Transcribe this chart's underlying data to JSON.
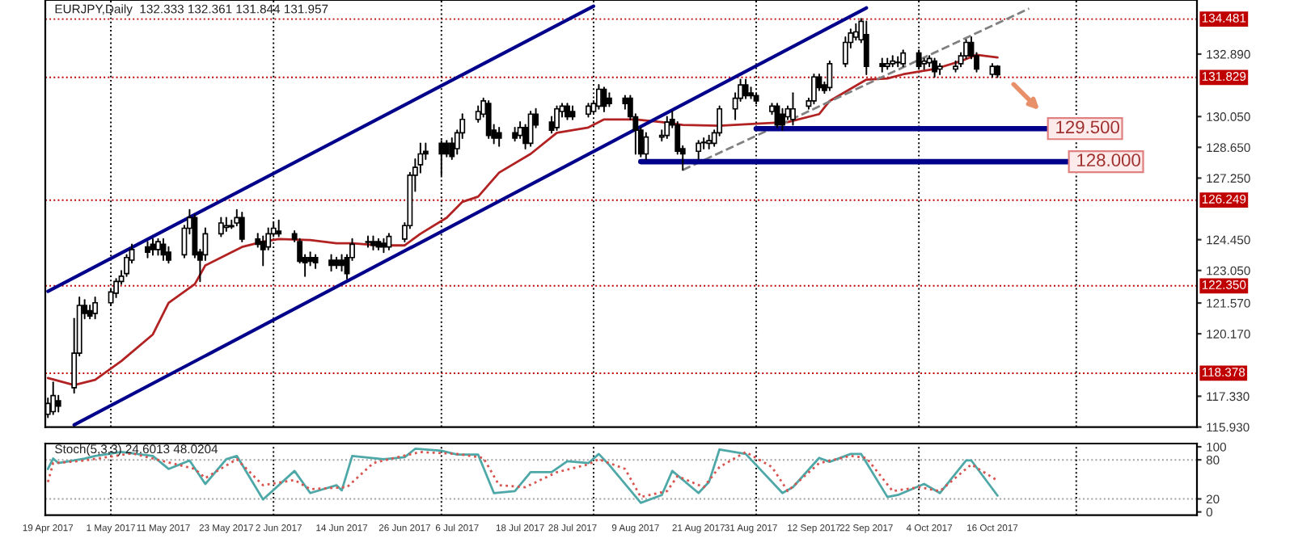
{
  "chart_data": [
    {
      "type": "candlestick",
      "title": "EURJPY,Daily  132.333 132.361 131.844 131.957",
      "tick_labels": "y",
      "grid": false,
      "xlim": [
        "2017-04-18T12:00",
        "2017-11-24"
      ],
      "ylim": [
        115.93,
        135.35
      ],
      "yticks": [
        {
          "value": 132.89,
          "label": "132.890"
        },
        {
          "value": 130.05,
          "label": "130.050"
        },
        {
          "value": 128.65,
          "label": "128.650"
        },
        {
          "value": 127.25,
          "label": "127.250"
        },
        {
          "value": 124.45,
          "label": "124.450"
        },
        {
          "value": 123.05,
          "label": "123.050"
        },
        {
          "value": 121.57,
          "label": "121.570"
        },
        {
          "value": 120.17,
          "label": "120.170"
        },
        {
          "value": 117.33,
          "label": "117.330"
        },
        {
          "value": 115.93,
          "label": "115.930"
        }
      ],
      "x": [
        "2017-04-19",
        "2017-04-20",
        "2017-04-21",
        "2017-04-24",
        "2017-04-25",
        "2017-04-26",
        "2017-04-27",
        "2017-04-28",
        "2017-05-01",
        "2017-05-02",
        "2017-05-03",
        "2017-05-04",
        "2017-05-05",
        "2017-05-08",
        "2017-05-09",
        "2017-05-10",
        "2017-05-11",
        "2017-05-12",
        "2017-05-15",
        "2017-05-16",
        "2017-05-17",
        "2017-05-18",
        "2017-05-19",
        "2017-05-22",
        "2017-05-23",
        "2017-05-24",
        "2017-05-25",
        "2017-05-26",
        "2017-05-29",
        "2017-05-30",
        "2017-05-31",
        "2017-06-01",
        "2017-06-02",
        "2017-06-05",
        "2017-06-06",
        "2017-06-07",
        "2017-06-08",
        "2017-06-09",
        "2017-06-12",
        "2017-06-13",
        "2017-06-14",
        "2017-06-15",
        "2017-06-16",
        "2017-06-19",
        "2017-06-20",
        "2017-06-21",
        "2017-06-22",
        "2017-06-23",
        "2017-06-26",
        "2017-06-27",
        "2017-06-28",
        "2017-06-29",
        "2017-06-30",
        "2017-07-03",
        "2017-07-04",
        "2017-07-05",
        "2017-07-06",
        "2017-07-07",
        "2017-07-10",
        "2017-07-11",
        "2017-07-12",
        "2017-07-13",
        "2017-07-14",
        "2017-07-17",
        "2017-07-18",
        "2017-07-19",
        "2017-07-20",
        "2017-07-21",
        "2017-07-24",
        "2017-07-25",
        "2017-07-26",
        "2017-07-27",
        "2017-07-28",
        "2017-07-31",
        "2017-08-01",
        "2017-08-02",
        "2017-08-03",
        "2017-08-04",
        "2017-08-07",
        "2017-08-08",
        "2017-08-09",
        "2017-08-10",
        "2017-08-11",
        "2017-08-14",
        "2017-08-15",
        "2017-08-16",
        "2017-08-17",
        "2017-08-18",
        "2017-08-21",
        "2017-08-22",
        "2017-08-23",
        "2017-08-24",
        "2017-08-25",
        "2017-08-28",
        "2017-08-29",
        "2017-08-30",
        "2017-08-31",
        "2017-09-01",
        "2017-09-04",
        "2017-09-05",
        "2017-09-06",
        "2017-09-07",
        "2017-09-08",
        "2017-09-11",
        "2017-09-12",
        "2017-09-13",
        "2017-09-14",
        "2017-09-15",
        "2017-09-18",
        "2017-09-19",
        "2017-09-20",
        "2017-09-21",
        "2017-09-22",
        "2017-09-25",
        "2017-09-26",
        "2017-09-27",
        "2017-09-28",
        "2017-09-29",
        "2017-10-02",
        "2017-10-03",
        "2017-10-04",
        "2017-10-05",
        "2017-10-06",
        "2017-10-09",
        "2017-10-10",
        "2017-10-11",
        "2017-10-12",
        "2017-10-13",
        "2017-10-16",
        "2017-10-17"
      ],
      "ohlc": [
        [
          116.51,
          117.24,
          116.37,
          117.0
        ],
        [
          116.63,
          117.96,
          116.51,
          117.36
        ],
        [
          117.12,
          117.36,
          116.63,
          116.88
        ],
        [
          117.72,
          120.86,
          117.48,
          119.29
        ],
        [
          119.29,
          121.83,
          119.17,
          121.46
        ],
        [
          121.46,
          121.71,
          120.86,
          121.1
        ],
        [
          121.22,
          121.46,
          120.86,
          120.98
        ],
        [
          121.1,
          121.83,
          120.86,
          121.58
        ],
        [
          121.58,
          122.19,
          121.46,
          122.07
        ],
        [
          122.02,
          122.67,
          121.83,
          122.55
        ],
        [
          122.55,
          123.03,
          122.43,
          122.79
        ],
        [
          122.91,
          123.76,
          122.79,
          123.64
        ],
        [
          123.52,
          124.24,
          123.4,
          124.0
        ],
        [
          124.12,
          124.36,
          123.64,
          123.88
        ],
        [
          124.24,
          124.48,
          123.76,
          124.0
        ],
        [
          124.0,
          124.48,
          123.76,
          124.36
        ],
        [
          124.24,
          124.48,
          123.52,
          123.76
        ],
        [
          123.88,
          124.12,
          123.4,
          123.52
        ],
        [
          123.76,
          125.09,
          123.64,
          124.97
        ],
        [
          124.97,
          125.81,
          124.72,
          125.45
        ],
        [
          125.45,
          125.57,
          123.64,
          123.76
        ],
        [
          123.88,
          124.0,
          122.55,
          123.52
        ],
        [
          123.76,
          124.97,
          123.52,
          124.72
        ],
        [
          124.72,
          125.45,
          124.6,
          125.21
        ],
        [
          125.01,
          125.45,
          124.84,
          125.09
        ],
        [
          125.09,
          125.33,
          124.97,
          125.04
        ],
        [
          125.21,
          125.81,
          125.09,
          125.45
        ],
        [
          125.45,
          125.69,
          124.36,
          124.48
        ],
        [
          124.48,
          124.72,
          124.12,
          124.24
        ],
        [
          124.36,
          124.6,
          123.28,
          124.0
        ],
        [
          124.12,
          124.97,
          124.0,
          124.72
        ],
        [
          124.72,
          125.21,
          124.6,
          124.97
        ],
        [
          124.84,
          125.33,
          124.6,
          124.72
        ],
        [
          124.72,
          124.84,
          124.36,
          124.48
        ],
        [
          124.36,
          124.48,
          123.4,
          123.47
        ],
        [
          123.64,
          123.76,
          122.79,
          123.4
        ],
        [
          123.64,
          123.88,
          123.28,
          123.47
        ],
        [
          123.64,
          123.76,
          123.15,
          123.4
        ],
        [
          123.52,
          123.76,
          123.03,
          123.28
        ],
        [
          123.52,
          123.64,
          123.15,
          123.28
        ],
        [
          123.52,
          123.76,
          123.03,
          123.28
        ],
        [
          123.64,
          123.76,
          122.67,
          122.91
        ],
        [
          123.64,
          124.48,
          123.52,
          124.24
        ],
        [
          124.33,
          124.6,
          124.12,
          124.36
        ],
        [
          124.36,
          124.6,
          124.0,
          124.19
        ],
        [
          124.36,
          124.48,
          124.0,
          124.12
        ],
        [
          124.29,
          124.48,
          123.88,
          124.12
        ],
        [
          124.12,
          124.72,
          124.0,
          124.6
        ],
        [
          124.48,
          125.21,
          124.36,
          125.09
        ],
        [
          125.09,
          127.5,
          124.97,
          127.38
        ],
        [
          127.38,
          128.11,
          126.66,
          127.74
        ],
        [
          127.86,
          128.83,
          127.5,
          128.35
        ],
        [
          128.47,
          128.83,
          128.11,
          128.35
        ],
        [
          128.83,
          128.95,
          127.38,
          128.35
        ],
        [
          128.83,
          128.95,
          128.23,
          128.35
        ],
        [
          128.83,
          129.07,
          128.11,
          128.23
        ],
        [
          128.59,
          129.43,
          128.35,
          129.31
        ],
        [
          129.31,
          130.16,
          129.07,
          129.92
        ],
        [
          129.92,
          130.52,
          129.8,
          130.28
        ],
        [
          130.16,
          130.88,
          130.04,
          130.76
        ],
        [
          130.64,
          130.76,
          129.07,
          129.19
        ],
        [
          129.43,
          129.67,
          128.83,
          129.07
        ],
        [
          129.31,
          129.55,
          128.71,
          129.07
        ],
        [
          129.31,
          129.55,
          128.95,
          129.07
        ],
        [
          129.19,
          129.8,
          129.07,
          129.55
        ],
        [
          129.55,
          129.67,
          128.59,
          128.83
        ],
        [
          128.83,
          130.28,
          128.71,
          130.16
        ],
        [
          130.16,
          130.4,
          129.55,
          129.67
        ],
        [
          129.8,
          130.04,
          129.31,
          129.43
        ],
        [
          129.55,
          130.52,
          129.43,
          130.4
        ],
        [
          130.28,
          130.64,
          130.04,
          130.52
        ],
        [
          130.52,
          130.64,
          129.92,
          130.04
        ],
        [
          130.28,
          130.52,
          129.92,
          130.04
        ],
        [
          130.16,
          130.64,
          130.04,
          130.52
        ],
        [
          130.28,
          130.76,
          130.16,
          130.64
        ],
        [
          130.52,
          131.49,
          130.4,
          131.29
        ],
        [
          131.29,
          131.37,
          130.28,
          130.52
        ],
        [
          130.88,
          131.12,
          130.52,
          130.64
        ],
        [
          130.88,
          131.0,
          130.4,
          130.64
        ],
        [
          130.88,
          131.0,
          129.92,
          130.04
        ],
        [
          130.04,
          130.16,
          128.35,
          129.43
        ],
        [
          129.43,
          129.55,
          128.23,
          128.35
        ],
        [
          128.35,
          129.31,
          128.11,
          129.12
        ],
        [
          129.12,
          129.43,
          128.95,
          129.19
        ],
        [
          129.19,
          130.04,
          129.07,
          129.8
        ],
        [
          129.92,
          130.28,
          129.55,
          129.67
        ],
        [
          129.67,
          129.8,
          128.35,
          128.47
        ],
        [
          128.59,
          128.71,
          127.62,
          128.35
        ],
        [
          128.47,
          128.95,
          128.11,
          128.83
        ],
        [
          128.88,
          129.07,
          128.59,
          128.86
        ],
        [
          128.83,
          129.19,
          128.59,
          128.95
        ],
        [
          128.83,
          129.43,
          128.71,
          129.31
        ],
        [
          129.31,
          130.52,
          129.19,
          130.4
        ],
        [
          130.4,
          131.12,
          129.92,
          130.88
        ],
        [
          130.88,
          131.73,
          130.76,
          131.49
        ],
        [
          131.49,
          131.73,
          130.88,
          131.0
        ],
        [
          131.12,
          131.37,
          130.88,
          131.0
        ],
        [
          131.0,
          131.12,
          130.64,
          130.76
        ],
        [
          130.28,
          130.64,
          130.16,
          130.52
        ],
        [
          130.52,
          130.64,
          129.55,
          129.67
        ],
        [
          130.16,
          130.4,
          129.43,
          129.67
        ],
        [
          130.04,
          130.52,
          129.92,
          130.4
        ],
        [
          129.92,
          131.12,
          129.67,
          130.4
        ],
        [
          130.52,
          130.88,
          130.4,
          130.76
        ],
        [
          130.76,
          131.97,
          130.64,
          131.85
        ],
        [
          131.85,
          131.97,
          131.24,
          131.37
        ],
        [
          131.49,
          131.61,
          131.12,
          131.24
        ],
        [
          131.37,
          132.57,
          131.24,
          132.45
        ],
        [
          132.45,
          133.66,
          132.33,
          133.42
        ],
        [
          133.42,
          134.02,
          133.18,
          133.85
        ],
        [
          133.66,
          134.26,
          133.54,
          133.9
        ],
        [
          133.54,
          134.5,
          133.42,
          134.38
        ],
        [
          133.78,
          134.38,
          131.97,
          132.33
        ],
        [
          132.45,
          132.69,
          132.09,
          132.33
        ],
        [
          132.33,
          132.69,
          132.21,
          132.45
        ],
        [
          132.45,
          132.81,
          132.33,
          132.57
        ],
        [
          132.52,
          132.76,
          132.33,
          132.5
        ],
        [
          132.45,
          133.06,
          132.33,
          132.94
        ],
        [
          132.94,
          133.06,
          132.21,
          132.33
        ],
        [
          132.45,
          132.69,
          132.21,
          132.57
        ],
        [
          132.5,
          132.81,
          132.33,
          132.69
        ],
        [
          132.57,
          132.69,
          131.85,
          132.09
        ],
        [
          132.21,
          132.45,
          131.97,
          132.33
        ],
        [
          132.21,
          132.57,
          132.09,
          132.33
        ],
        [
          132.45,
          132.94,
          132.33,
          132.81
        ],
        [
          132.81,
          133.54,
          132.69,
          133.42
        ],
        [
          133.42,
          133.66,
          132.69,
          132.81
        ],
        [
          132.81,
          132.94,
          132.09,
          132.21
        ],
        [
          131.97,
          132.45,
          131.85,
          132.33
        ],
        [
          132.333,
          132.361,
          131.844,
          131.957
        ]
      ],
      "series": [
        {
          "type": "line",
          "color": "#b22222",
          "x": [
            "2017-04-19",
            "2017-04-24",
            "2017-04-28",
            "2017-05-03",
            "2017-05-09",
            "2017-05-12",
            "2017-05-17",
            "2017-05-19",
            "2017-05-23",
            "2017-05-26",
            "2017-05-30",
            "2017-06-02",
            "2017-06-08",
            "2017-06-13",
            "2017-06-16",
            "2017-06-21",
            "2017-06-26",
            "2017-06-29",
            "2017-07-04",
            "2017-07-07",
            "2017-07-10",
            "2017-07-14",
            "2017-07-20",
            "2017-07-25",
            "2017-07-31",
            "2017-08-03",
            "2017-08-09",
            "2017-08-14",
            "2017-08-18",
            "2017-08-25",
            "2017-09-01",
            "2017-09-07",
            "2017-09-13",
            "2017-09-15",
            "2017-09-22",
            "2017-09-26",
            "2017-09-29",
            "2017-10-05",
            "2017-10-10",
            "2017-10-13",
            "2017-10-17"
          ],
          "values": [
            118.16,
            117.84,
            118.08,
            118.93,
            120.14,
            121.58,
            122.43,
            123.28,
            123.76,
            124.12,
            124.36,
            124.48,
            124.43,
            124.29,
            124.29,
            124.19,
            124.19,
            124.72,
            125.45,
            126.17,
            126.41,
            127.5,
            128.35,
            129.31,
            129.55,
            129.92,
            129.92,
            129.8,
            129.67,
            129.63,
            129.72,
            129.8,
            130.16,
            130.76,
            131.73,
            131.78,
            131.97,
            132.21,
            132.57,
            132.86,
            132.74
          ]
        },
        {
          "type": "line",
          "color": "#00008b",
          "x": [
            "2017-04-19",
            "2017-08-01"
          ],
          "values": [
            122.1,
            135.07
          ]
        },
        {
          "type": "line",
          "color": "#00008b",
          "x": [
            "2017-04-24",
            "2017-09-22"
          ],
          "values": [
            116.03,
            134.99
          ]
        },
        {
          "type": "line",
          "color": "#808080",
          "line_style": "dashed",
          "x": [
            "2017-08-18",
            "2017-10-23"
          ],
          "values": [
            127.62,
            134.96
          ]
        },
        {
          "type": "line",
          "name": "129.500",
          "color": "#00008b",
          "x": [
            "2017-09-01",
            "2017-10-27"
          ],
          "values": [
            129.5,
            129.5
          ]
        },
        {
          "type": "line",
          "name": "128.000",
          "color": "#00008b",
          "x": [
            "2017-08-10",
            "2017-10-31"
          ],
          "values": [
            128.0,
            128.0
          ]
        }
      ],
      "ref_lines": [
        {
          "axis": "y",
          "value": 134.481,
          "label": "134.481",
          "color": "#c00000",
          "line_style": "dotted"
        },
        {
          "axis": "y",
          "value": 131.829,
          "label": "131.829",
          "color": "#c00000",
          "line_style": "dotted"
        },
        {
          "axis": "y",
          "value": 126.249,
          "label": "126.249",
          "color": "#c00000",
          "line_style": "dotted"
        },
        {
          "axis": "y",
          "value": 122.35,
          "label": "122.350",
          "color": "#c00000",
          "line_style": "dotted"
        },
        {
          "axis": "y",
          "value": 118.378,
          "label": "118.378",
          "color": "#c00000",
          "line_style": "dotted"
        },
        {
          "axis": "x",
          "value": "2017-05-01",
          "color": "#000000",
          "line_style": "dotted"
        },
        {
          "axis": "x",
          "value": "2017-06-01",
          "color": "#000000",
          "line_style": "dotted"
        },
        {
          "axis": "x",
          "value": "2017-07-03",
          "color": "#000000",
          "line_style": "dotted"
        },
        {
          "axis": "x",
          "value": "2017-08-01",
          "color": "#000000",
          "line_style": "dotted"
        },
        {
          "axis": "x",
          "value": "2017-09-01",
          "color": "#000000",
          "line_style": "dotted"
        },
        {
          "axis": "x",
          "value": "2017-10-02",
          "color": "#000000",
          "line_style": "dotted"
        },
        {
          "axis": "x",
          "value": "2017-11-01",
          "color": "#000000",
          "line_style": "dotted"
        }
      ]
    },
    {
      "type": "line",
      "title": "Stoch(5,3,3) 24.6013 48.0204",
      "grid": false,
      "xlim": [
        "2017-04-18T12:00",
        "2017-11-24"
      ],
      "ylim": [
        -5,
        105
      ],
      "yticks": [
        0,
        20,
        80,
        100
      ],
      "xticks": [
        {
          "value": "2017-04-19",
          "label": "19 Apr 2017"
        },
        {
          "value": "2017-05-01",
          "label": "1 May 2017"
        },
        {
          "value": "2017-05-11",
          "label": "11 May 2017"
        },
        {
          "value": "2017-05-23",
          "label": "23 May 2017"
        },
        {
          "value": "2017-06-02",
          "label": "2 Jun 2017"
        },
        {
          "value": "2017-06-14",
          "label": "14 Jun 2017"
        },
        {
          "value": "2017-06-26",
          "label": "26 Jun 2017"
        },
        {
          "value": "2017-07-06",
          "label": "6 Jul 2017"
        },
        {
          "value": "2017-07-18",
          "label": "18 Jul 2017"
        },
        {
          "value": "2017-07-28",
          "label": "28 Jul 2017"
        },
        {
          "value": "2017-08-09",
          "label": "9 Aug 2017"
        },
        {
          "value": "2017-08-21",
          "label": "21 Aug 2017"
        },
        {
          "value": "2017-08-31",
          "label": "31 Aug 2017"
        },
        {
          "value": "2017-09-12",
          "label": "12 Sep 2017"
        },
        {
          "value": "2017-09-22",
          "label": "22 Sep 2017"
        },
        {
          "value": "2017-10-04",
          "label": "4 Oct 2017"
        },
        {
          "value": "2017-10-16",
          "label": "16 Oct 2017"
        }
      ],
      "series": [
        {
          "color": "#4fa8a8",
          "x": [
            "2017-04-19",
            "2017-04-20",
            "2017-04-21",
            "2017-04-26",
            "2017-04-28",
            "2017-05-03",
            "2017-05-09",
            "2017-05-12",
            "2017-05-16",
            "2017-05-19",
            "2017-05-23",
            "2017-05-25",
            "2017-05-30",
            "2017-06-05",
            "2017-06-08",
            "2017-06-13",
            "2017-06-14",
            "2017-06-16",
            "2017-06-22",
            "2017-06-26",
            "2017-06-28",
            "2017-07-03",
            "2017-07-06",
            "2017-07-10",
            "2017-07-13",
            "2017-07-17",
            "2017-07-20",
            "2017-07-24",
            "2017-07-27",
            "2017-07-31",
            "2017-08-02",
            "2017-08-04",
            "2017-08-10",
            "2017-08-14",
            "2017-08-16",
            "2017-08-21",
            "2017-08-23",
            "2017-08-25",
            "2017-08-30",
            "2017-09-06",
            "2017-09-08",
            "2017-09-13",
            "2017-09-15",
            "2017-09-19",
            "2017-09-21",
            "2017-09-26",
            "2017-09-28",
            "2017-10-03",
            "2017-10-06",
            "2017-10-11",
            "2017-10-12",
            "2017-10-17"
          ],
          "values": [
            66,
            82,
            75,
            82,
            86,
            92,
            86,
            66,
            79,
            43,
            81,
            86,
            19,
            63,
            29,
            41,
            33,
            86,
            81,
            84,
            97,
            94,
            88,
            88,
            29,
            32,
            61,
            61,
            78,
            75,
            89,
            72,
            14,
            26,
            63,
            29,
            46,
            96,
            89,
            29,
            38,
            83,
            77,
            89,
            89,
            23,
            26,
            43,
            29,
            79,
            79,
            25
          ]
        },
        {
          "color": "#d9534f",
          "line_style": "dotted",
          "x": [
            "2017-04-19",
            "2017-04-20",
            "2017-04-25",
            "2017-05-01",
            "2017-05-05",
            "2017-05-11",
            "2017-05-17",
            "2017-05-19",
            "2017-05-25",
            "2017-05-30",
            "2017-06-05",
            "2017-06-08",
            "2017-06-15",
            "2017-06-20",
            "2017-06-23",
            "2017-06-29",
            "2017-07-06",
            "2017-07-11",
            "2017-07-14",
            "2017-07-19",
            "2017-07-25",
            "2017-07-31",
            "2017-08-02",
            "2017-08-07",
            "2017-08-10",
            "2017-08-15",
            "2017-08-17",
            "2017-08-22",
            "2017-08-25",
            "2017-08-30",
            "2017-09-04",
            "2017-09-07",
            "2017-09-13",
            "2017-09-19",
            "2017-09-22",
            "2017-09-27",
            "2017-10-02",
            "2017-10-06",
            "2017-10-12",
            "2017-10-17"
          ],
          "values": [
            46,
            75,
            78,
            85,
            90,
            78,
            66,
            52,
            81,
            41,
            49,
            35,
            38,
            75,
            81,
            92,
            89,
            83,
            41,
            38,
            61,
            73,
            81,
            66,
            23,
            32,
            55,
            38,
            69,
            92,
            69,
            32,
            75,
            86,
            83,
            32,
            38,
            32,
            73,
            48
          ]
        }
      ],
      "ref_lines": [
        {
          "axis": "y",
          "value": 20,
          "color": "#a0a0a0",
          "line_style": "dotted"
        },
        {
          "axis": "y",
          "value": 80,
          "color": "#a0a0a0",
          "line_style": "dotted"
        },
        {
          "axis": "x",
          "value": "2017-05-01",
          "color": "#000000",
          "line_style": "dotted"
        },
        {
          "axis": "x",
          "value": "2017-06-01",
          "color": "#000000",
          "line_style": "dotted"
        },
        {
          "axis": "x",
          "value": "2017-07-03",
          "color": "#000000",
          "line_style": "dotted"
        },
        {
          "axis": "x",
          "value": "2017-08-01",
          "color": "#000000",
          "line_style": "dotted"
        },
        {
          "axis": "x",
          "value": "2017-09-01",
          "color": "#000000",
          "line_style": "dotted"
        },
        {
          "axis": "x",
          "value": "2017-10-02",
          "color": "#000000",
          "line_style": "dotted"
        },
        {
          "axis": "x",
          "value": "2017-11-01",
          "color": "#000000",
          "line_style": "dotted"
        }
      ]
    }
  ]
}
